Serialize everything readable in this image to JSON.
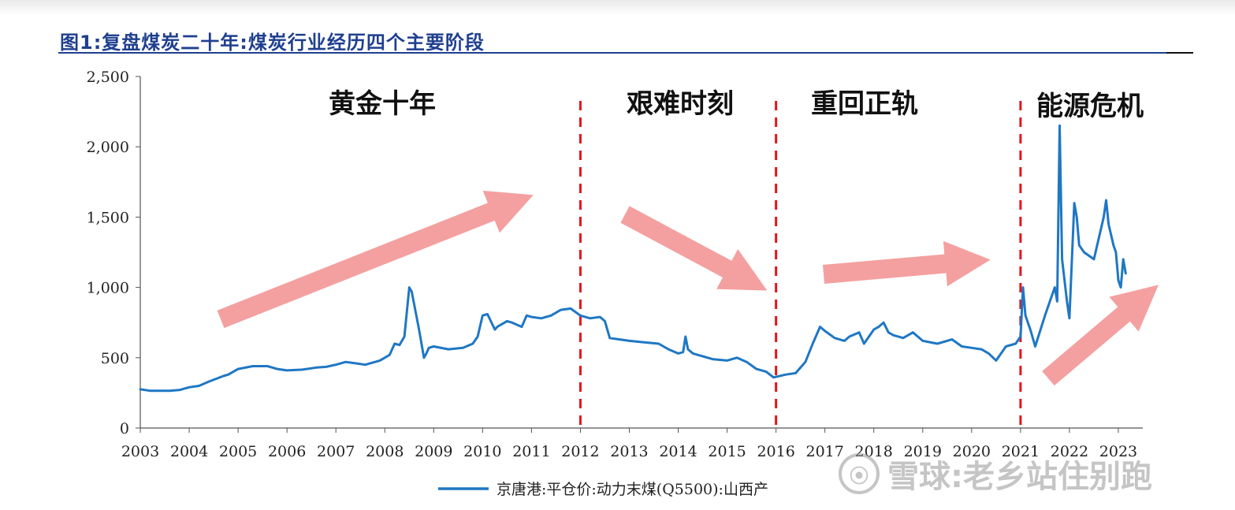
{
  "figure": {
    "title": "图1:复盘煤炭二十年:煤炭行业经历四个主要阶段"
  },
  "watermark": {
    "text": "雪球:老乡站住别跑"
  },
  "colors": {
    "series": "#1f77c4",
    "divider": "#e8131b",
    "arrow": "#f4a0a0",
    "title": "#1f3f8f"
  },
  "chart_data": {
    "type": "line",
    "title": "",
    "xlabel": "",
    "ylabel": "",
    "xlim": [
      2003,
      2023.5
    ],
    "ylim": [
      0,
      2500
    ],
    "yticks": [
      0,
      500,
      1000,
      1500,
      2000,
      2500
    ],
    "ytick_labels": [
      "0",
      "500",
      "1,000",
      "1,500",
      "2,000",
      "2,500"
    ],
    "xticks": [
      2003,
      2004,
      2005,
      2006,
      2007,
      2008,
      2009,
      2010,
      2011,
      2012,
      2013,
      2014,
      2015,
      2016,
      2017,
      2018,
      2019,
      2020,
      2021,
      2022,
      2023
    ],
    "xtick_labels": [
      "2003",
      "2004",
      "2005",
      "2006",
      "2007",
      "2008",
      "2009",
      "2010",
      "2011",
      "2012",
      "2013",
      "2014",
      "2015",
      "2016",
      "2017",
      "2018",
      "2019",
      "2020",
      "2021",
      "2022",
      "2023"
    ],
    "grid": false,
    "legend_position": "bottom",
    "series": [
      {
        "name": "京唐港:平仓价:动力末煤(Q5500):山西产",
        "x": [
          2003.0,
          2003.2,
          2003.6,
          2003.8,
          2004.0,
          2004.2,
          2004.4,
          2004.7,
          2004.8,
          2005.0,
          2005.3,
          2005.6,
          2005.8,
          2006.0,
          2006.3,
          2006.6,
          2006.8,
          2007.0,
          2007.2,
          2007.4,
          2007.6,
          2007.9,
          2008.0,
          2008.1,
          2008.2,
          2008.3,
          2008.4,
          2008.5,
          2008.55,
          2008.65,
          2008.7,
          2008.8,
          2008.85,
          2008.9,
          2009.0,
          2009.3,
          2009.6,
          2009.8,
          2009.9,
          2010.0,
          2010.1,
          2010.25,
          2010.3,
          2010.5,
          2010.6,
          2010.8,
          2010.9,
          2011.0,
          2011.2,
          2011.4,
          2011.6,
          2011.8,
          2012.0,
          2012.2,
          2012.4,
          2012.5,
          2012.6,
          2012.8,
          2013.0,
          2013.3,
          2013.6,
          2013.8,
          2014.0,
          2014.1,
          2014.15,
          2014.2,
          2014.3,
          2014.5,
          2014.7,
          2015.0,
          2015.2,
          2015.4,
          2015.6,
          2015.8,
          2015.95,
          2016.2,
          2016.4,
          2016.6,
          2016.75,
          2016.9,
          2017.0,
          2017.2,
          2017.4,
          2017.5,
          2017.7,
          2017.8,
          2018.0,
          2018.1,
          2018.2,
          2018.3,
          2018.4,
          2018.6,
          2018.8,
          2019.0,
          2019.3,
          2019.6,
          2019.8,
          2020.0,
          2020.2,
          2020.35,
          2020.5,
          2020.7,
          2020.9,
          2021.0,
          2021.05,
          2021.1,
          2021.2,
          2021.3,
          2021.5,
          2021.6,
          2021.65,
          2021.7,
          2021.75,
          2021.8,
          2021.85,
          2021.95,
          2022.0,
          2022.1,
          2022.15,
          2022.2,
          2022.3,
          2022.5,
          2022.6,
          2022.7,
          2022.75,
          2022.8,
          2022.9,
          2022.95,
          2023.0,
          2023.05,
          2023.1,
          2023.15
        ],
        "y": [
          275,
          265,
          265,
          270,
          290,
          300,
          330,
          370,
          380,
          420,
          440,
          440,
          420,
          410,
          415,
          430,
          435,
          450,
          470,
          460,
          450,
          480,
          500,
          520,
          600,
          590,
          650,
          1000,
          970,
          790,
          700,
          500,
          530,
          570,
          580,
          560,
          570,
          600,
          650,
          800,
          810,
          700,
          720,
          760,
          750,
          720,
          800,
          790,
          780,
          800,
          840,
          850,
          800,
          780,
          790,
          760,
          640,
          630,
          620,
          610,
          600,
          560,
          530,
          540,
          650,
          560,
          530,
          510,
          490,
          480,
          500,
          470,
          420,
          400,
          360,
          380,
          390,
          470,
          600,
          720,
          690,
          640,
          620,
          650,
          680,
          600,
          700,
          720,
          750,
          680,
          660,
          640,
          680,
          620,
          600,
          630,
          580,
          570,
          560,
          530,
          480,
          580,
          600,
          650,
          1000,
          800,
          700,
          580,
          800,
          900,
          950,
          1000,
          900,
          2150,
          1200,
          900,
          780,
          1600,
          1500,
          1300,
          1250,
          1200,
          1350,
          1500,
          1620,
          1450,
          1300,
          1250,
          1050,
          1000,
          1200,
          1100
        ]
      }
    ],
    "phases": [
      {
        "label": "黄金十年"
      },
      {
        "label": "艰难时刻"
      },
      {
        "label": "重回正轨"
      },
      {
        "label": "能源危机"
      }
    ],
    "phase_dividers": [
      2012.0,
      2016.0,
      2021.0
    ]
  }
}
